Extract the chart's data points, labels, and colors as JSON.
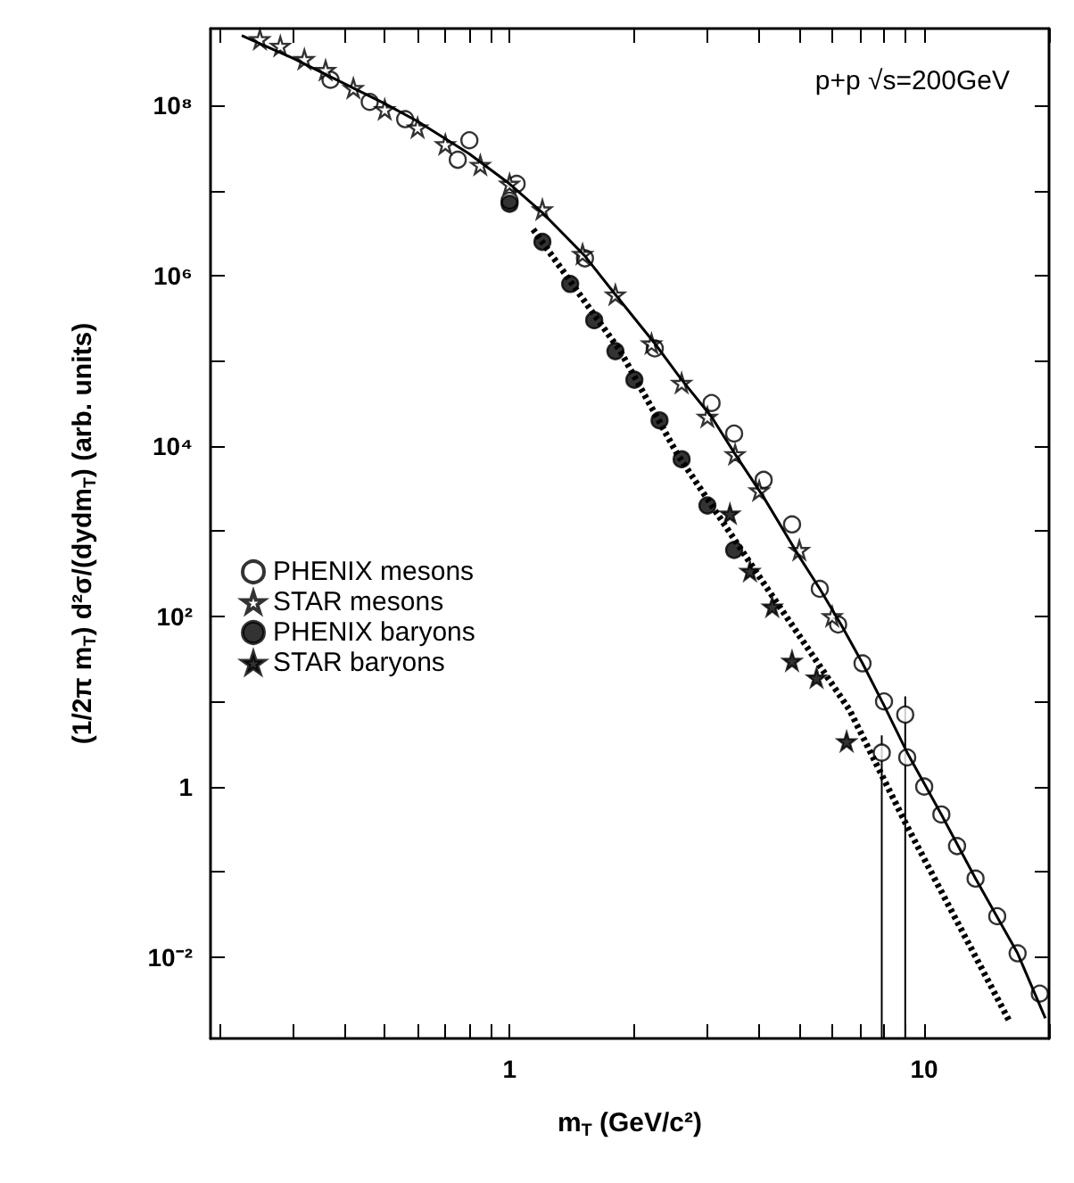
{
  "chart_data": {
    "type": "scatter",
    "xlabel": "m$_{T}$ (GeV/c²)",
    "ylabel": "(1/2π m$_{T}$) d²σ/(dydm$_{T}$) (arb. units)",
    "annotations": [
      "p+p √s=200GeV"
    ],
    "log": "xy",
    "xlim": [
      0.19,
      20
    ],
    "ylim": [
      0.0011,
      800000000
    ],
    "xticks": [
      {
        "value": 0.2,
        "label": null
      },
      {
        "value": 0.3,
        "label": null
      },
      {
        "value": 0.4,
        "label": null
      },
      {
        "value": 0.5,
        "label": null
      },
      {
        "value": 0.6,
        "label": null
      },
      {
        "value": 0.7,
        "label": null
      },
      {
        "value": 0.8,
        "label": null
      },
      {
        "value": 0.9,
        "label": null
      },
      1,
      {
        "value": 2,
        "label": null
      },
      {
        "value": 3,
        "label": null
      },
      {
        "value": 4,
        "label": null
      },
      {
        "value": 5,
        "label": null
      },
      {
        "value": 6,
        "label": null
      },
      {
        "value": 7,
        "label": null
      },
      {
        "value": 8,
        "label": null
      },
      {
        "value": 9,
        "label": null
      },
      10,
      {
        "value": 20,
        "label": null
      }
    ],
    "yticks": [
      {
        "value": 0.01,
        "label": "10⁻²"
      },
      {
        "value": 0.1,
        "label": null
      },
      1,
      {
        "value": 10,
        "label": null
      },
      {
        "value": 100,
        "label": "10²"
      },
      {
        "value": 1000,
        "label": null
      },
      {
        "value": 10000,
        "label": "10⁴"
      },
      {
        "value": 100000,
        "label": null
      },
      {
        "value": 1000000,
        "label": "10⁶"
      },
      {
        "value": 10000000,
        "label": null
      },
      {
        "value": 100000000,
        "label": "10⁸"
      }
    ],
    "legend": "left",
    "series": [
      {
        "name": "PHENIX mesons",
        "marker": "circle",
        "color": "#ffffff",
        "x": [
          0.37,
          0.46,
          0.56,
          0.75,
          0.8,
          1.0,
          1.04,
          1.52,
          2.24,
          3.07,
          3.48,
          4.1,
          4.8,
          5.6,
          6.2,
          7.1,
          7.9,
          8.0,
          9.0,
          9.1,
          10,
          11,
          12,
          13.3,
          15,
          16.8,
          19
        ],
        "values": [
          200000000,
          110000000,
          69000000,
          23000000,
          39000000,
          7600000,
          12000000,
          1600000,
          140000,
          32000,
          14000,
          4000,
          1200,
          210,
          80,
          28,
          2.5,
          10,
          7,
          2.2,
          1,
          0.47,
          0.2,
          0.083,
          0.03,
          0.011,
          0.0037
        ],
        "errors": [
          null,
          null,
          null,
          null,
          null,
          null,
          null,
          null,
          null,
          null,
          null,
          null,
          null,
          null,
          null,
          null,
          [
            0.0011,
            4
          ],
          null,
          [
            0.0011,
            11.5
          ],
          null,
          null,
          null,
          null,
          null,
          null,
          null,
          null
        ]
      },
      {
        "name": "STAR mesons",
        "marker": "star",
        "color": "#ffffff",
        "x": [
          0.25,
          0.28,
          0.32,
          0.36,
          0.42,
          0.5,
          0.6,
          0.7,
          0.85,
          1.0,
          1.2,
          1.5,
          1.8,
          2.2,
          2.6,
          3.0,
          3.5,
          4.0,
          5.0,
          6.0
        ],
        "values": [
          600000000,
          500000000,
          350000000,
          260000000,
          160000000,
          90000000,
          55000000,
          35000000,
          20000000,
          12000000,
          6000000,
          1800000,
          600000,
          160000,
          55000,
          22000,
          8000,
          3000,
          600,
          100
        ]
      },
      {
        "name": "PHENIX baryons",
        "marker": "circle",
        "color": "#000000",
        "x": [
          1.0,
          1.2,
          1.4,
          1.6,
          1.8,
          2.0,
          2.3,
          2.6,
          3.0,
          3.48
        ],
        "values": [
          7000000,
          2500000,
          800000,
          300000,
          130000,
          60000,
          20000,
          7000,
          2000,
          600
        ]
      },
      {
        "name": "STAR baryons",
        "marker": "star",
        "color": "#000000",
        "x": [
          3.4,
          3.8,
          4.3,
          4.8,
          5.5,
          6.5
        ],
        "values": [
          1600,
          340,
          130,
          30,
          19,
          3.4
        ]
      },
      {
        "type": "line",
        "marker": "none",
        "line_style": "solid",
        "color": "#000000",
        "x": [
          0.226,
          0.3,
          0.4,
          0.5,
          0.6,
          0.8,
          1.0,
          1.2,
          1.52,
          1.8,
          2.24,
          2.6,
          3.07,
          3.5,
          4.1,
          5,
          5.6,
          6.3,
          7.1,
          8,
          9.1,
          11,
          13.3,
          16.8,
          19.6
        ],
        "values": [
          660000000,
          360000000,
          180000000,
          105000000,
          65000000,
          27000000,
          12000000,
          5500000,
          1700000,
          600000,
          160000,
          60000,
          22000,
          8000,
          2500,
          500,
          210,
          80,
          28,
          9,
          2.5,
          0.47,
          0.083,
          0.011,
          0.0019
        ]
      },
      {
        "type": "line",
        "marker": "none",
        "line_style": "dotted",
        "color": "#000000",
        "x": [
          1.14,
          1.85,
          2.54,
          4.1,
          6.6,
          9.1,
          16.1
        ],
        "values": [
          3500000,
          130000,
          8000,
          245,
          8,
          0.34,
          0.0017
        ]
      }
    ]
  }
}
